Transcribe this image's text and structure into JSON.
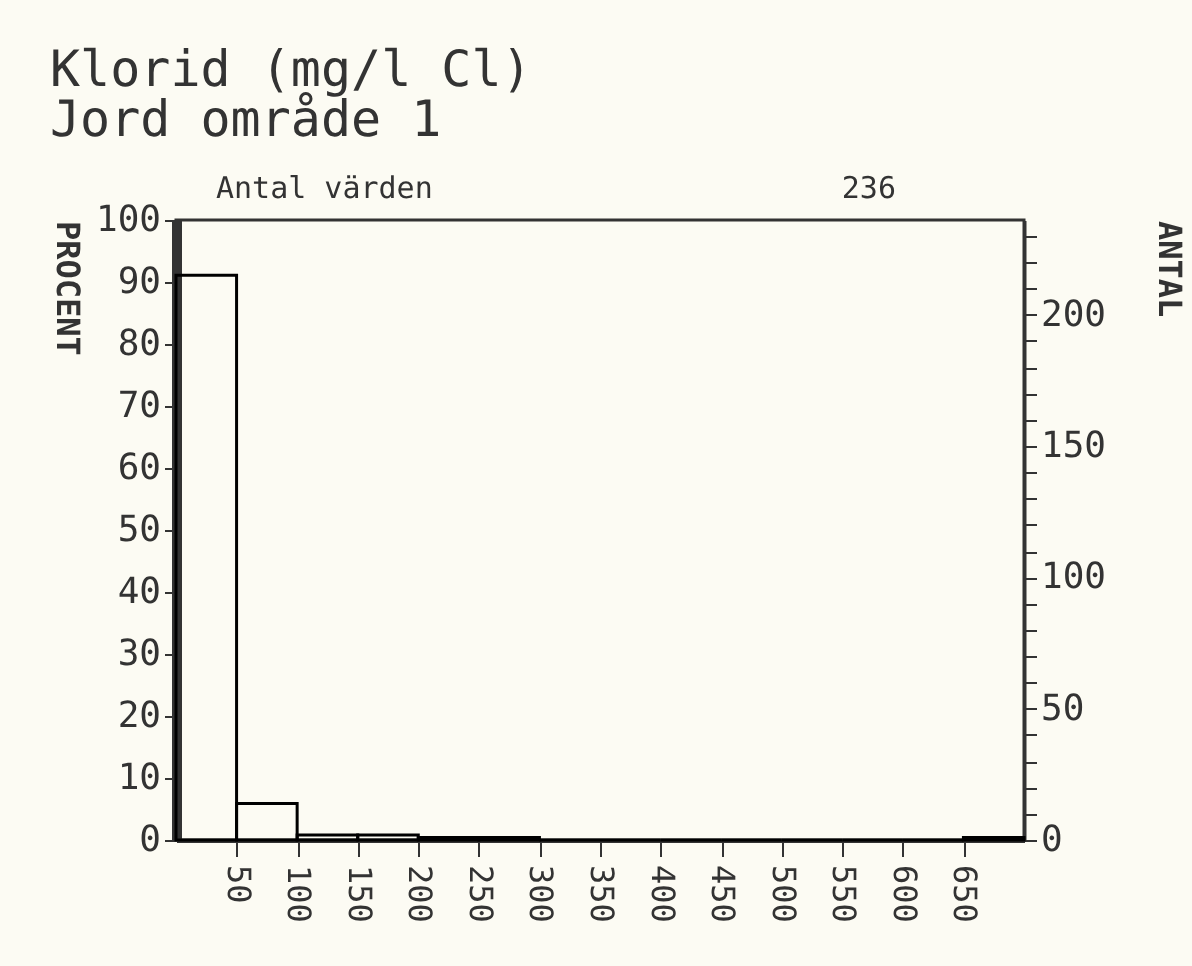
{
  "chart_data": {
    "type": "histogram",
    "title": "Klorid (mg/l Cl)",
    "subtitle": "Jord område 1",
    "annotations": [
      "Antal värden",
      "236"
    ],
    "ylabel": "PROCENT",
    "y2label": "ANTAL",
    "bins": [
      0,
      50,
      100,
      150,
      200,
      250,
      300,
      350,
      400,
      450,
      500,
      550,
      600,
      650,
      700
    ],
    "values": [
      91.1,
      5.9,
      0.8,
      0.8,
      0.4,
      0.4,
      0,
      0,
      0,
      0,
      0,
      0,
      0,
      0.4
    ],
    "color": "#000000",
    "xlim": [
      0,
      700
    ],
    "xticks": [
      50,
      100,
      150,
      200,
      250,
      300,
      350,
      400,
      450,
      500,
      550,
      600,
      650
    ],
    "ylim": [
      0,
      100
    ],
    "yticks": [
      0,
      10,
      20,
      30,
      40,
      50,
      60,
      70,
      80,
      90,
      100
    ],
    "y2lim": [
      0,
      236
    ],
    "y2ticks": [
      0,
      {
        "value": 10,
        "label": null
      },
      {
        "value": 20,
        "label": null
      },
      {
        "value": 30,
        "label": null
      },
      {
        "value": 40,
        "label": null
      },
      50,
      {
        "value": 60,
        "label": null
      },
      {
        "value": 70,
        "label": null
      },
      {
        "value": 80,
        "label": null
      },
      {
        "value": 90,
        "label": null
      },
      100,
      {
        "value": 110,
        "label": null
      },
      {
        "value": 120,
        "label": null
      },
      {
        "value": 130,
        "label": null
      },
      {
        "value": 140,
        "label": null
      },
      150,
      {
        "value": 160,
        "label": null
      },
      {
        "value": 170,
        "label": null
      },
      {
        "value": 180,
        "label": null
      },
      {
        "value": 190,
        "label": null
      },
      200,
      {
        "value": 210,
        "label": null
      },
      {
        "value": 220,
        "label": null
      },
      {
        "value": 230,
        "label": null
      }
    ],
    "grid": false
  }
}
